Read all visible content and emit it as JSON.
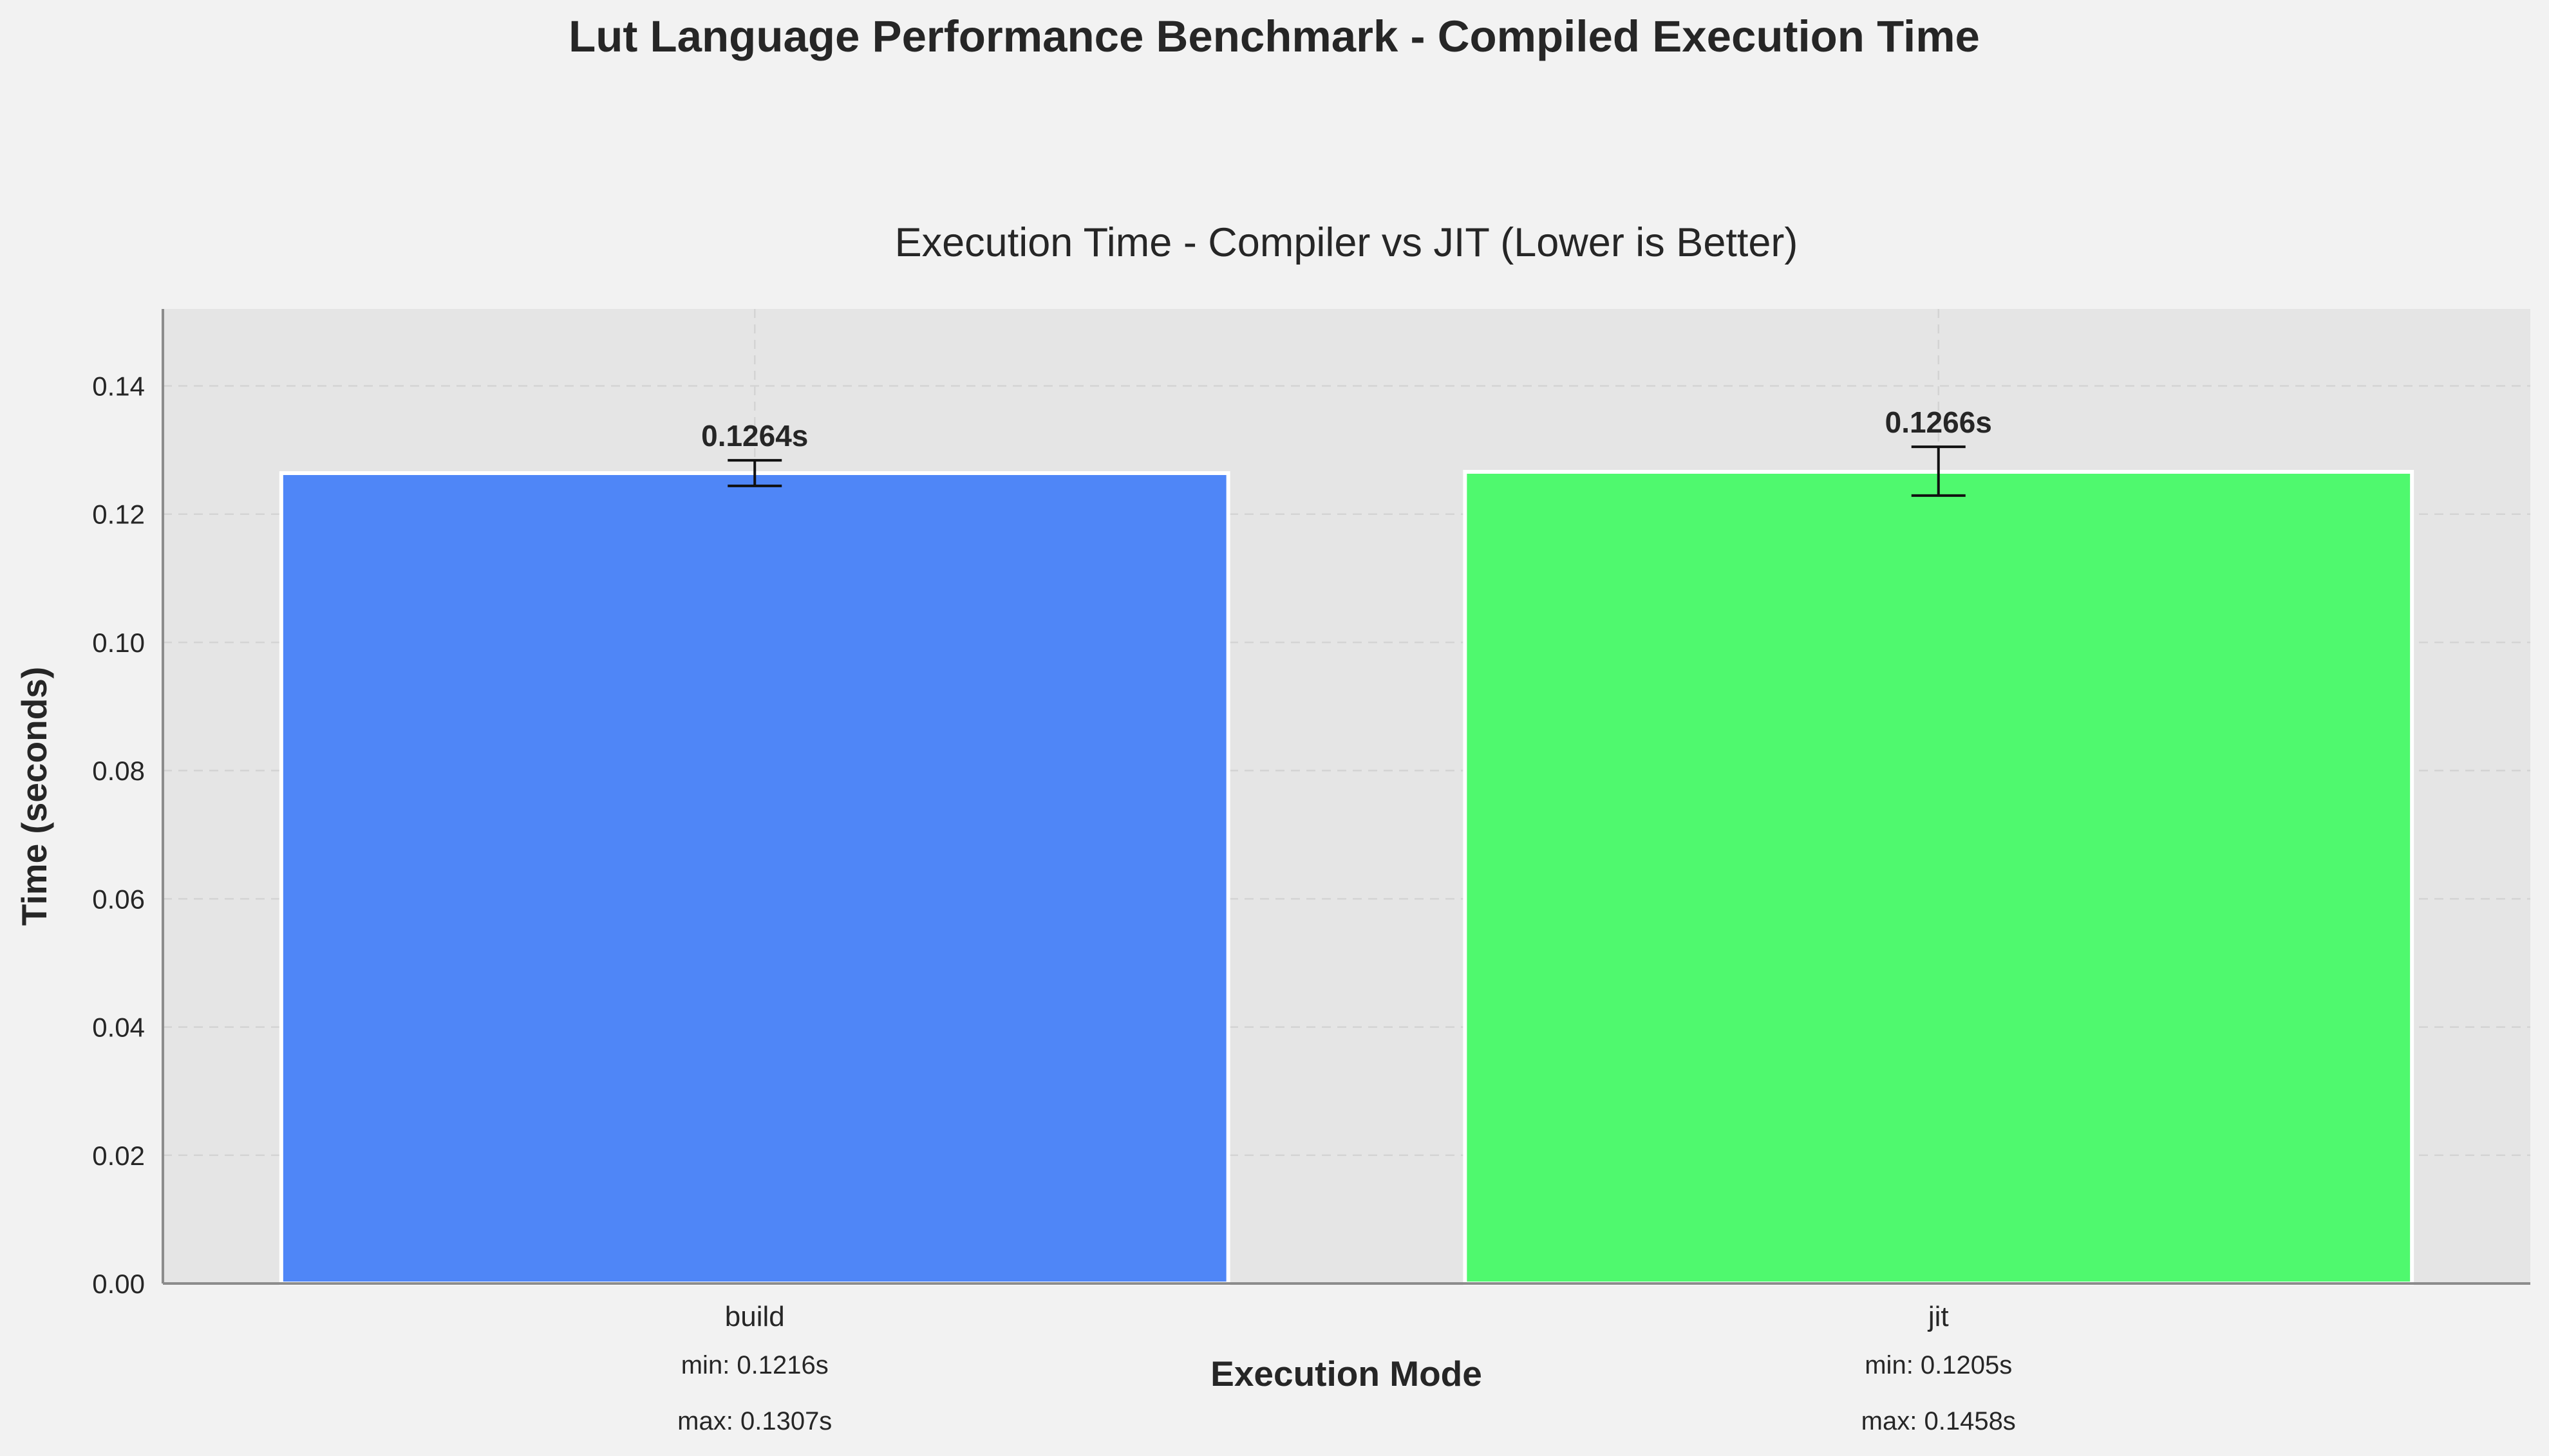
{
  "chart_data": {
    "type": "bar",
    "title": "Lut Language Performance Benchmark - Compiled Execution Time",
    "subtitle": "Execution Time - Compiler vs JIT (Lower is Better)",
    "xlabel": "Execution Mode",
    "ylabel": "Time (seconds)",
    "ylim": [
      0,
      0.152
    ],
    "yticks": [
      "0.00",
      "0.02",
      "0.04",
      "0.06",
      "0.08",
      "0.10",
      "0.12",
      "0.14"
    ],
    "grid": true,
    "categories": [
      "build",
      "jit"
    ],
    "values": [
      0.1264,
      0.1266
    ],
    "value_labels": [
      "0.1264s",
      "0.1266s"
    ],
    "error_low": [
      0.1244,
      0.1229
    ],
    "error_high": [
      0.1284,
      0.1305
    ],
    "min_labels": [
      "min: 0.1216s",
      "min: 0.1205s"
    ],
    "max_labels": [
      "max: 0.1307s",
      "max: 0.1458s"
    ],
    "colors": [
      "#4f86f7",
      "#4ff96e"
    ],
    "plot_background": "#e5e5e5",
    "figure_background": "#f2f2f2"
  }
}
